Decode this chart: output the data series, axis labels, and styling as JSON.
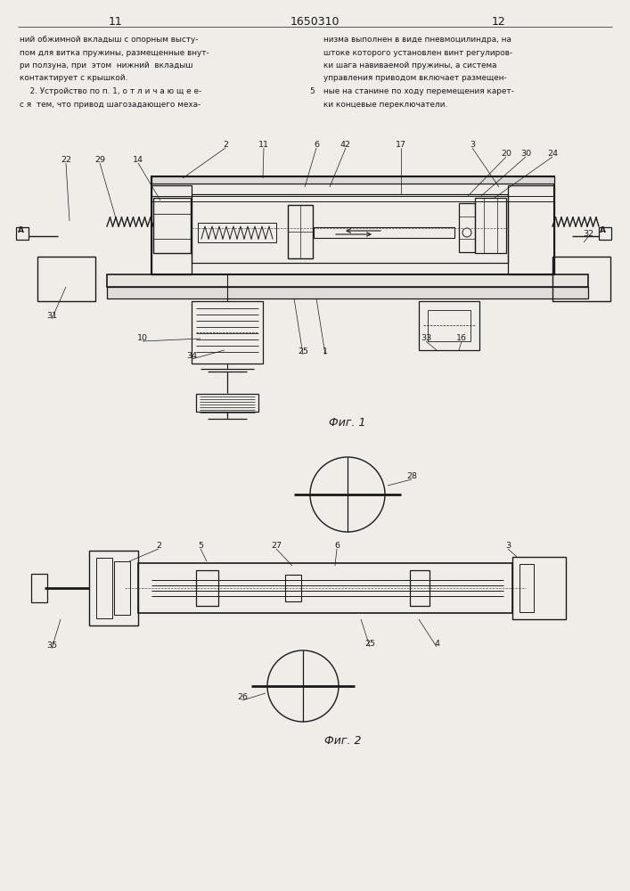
{
  "page_width": 7.07,
  "page_height": 10.0,
  "bg_color": "#f0ede8",
  "line_color": "#1a1a1a",
  "text_color": "#1a1a1a",
  "header_numbers": [
    "11",
    "1650310",
    "12"
  ],
  "text_col1": [
    "ний обжимной вкладыш с опорным высту-",
    "пом для витка пружины, размещенные внут-",
    "ри ползуна, при  этом  нижний  вкладыш",
    "контактирует с крышкой.",
    "    2. Устройство по п. 1, о т л и ч а ю щ е е-",
    "с я  тем, что привод шагозадающего меха-"
  ],
  "text_col2": [
    "низма выполнен в виде пневмоцилиндра, на",
    "штоке которого установлен винт регулиров-",
    "ки шага навиваемой пружины, а система",
    "управления приводом включает размещен-",
    "ные на станине по ходу перемещения карет-",
    "ки концевые переключатели."
  ],
  "fig1_label": "Фиг. 1",
  "fig2_label": "Фиг. 2"
}
